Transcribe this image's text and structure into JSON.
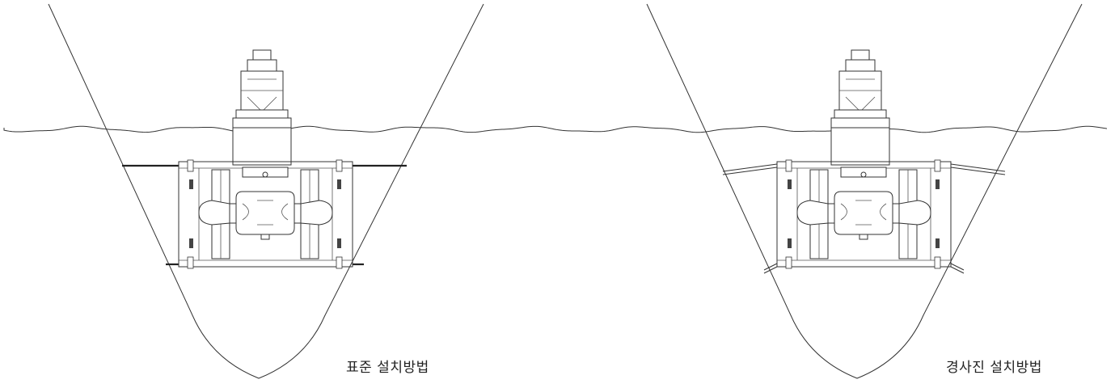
{
  "captions": {
    "left": "표준 설치방법",
    "right": "경사진 설치방법"
  },
  "colors": {
    "line": "#333333",
    "background": "#ffffff"
  },
  "figures": [
    {
      "id": "standard",
      "mount": "horizontal"
    },
    {
      "id": "inclined",
      "mount": "inclined"
    }
  ]
}
